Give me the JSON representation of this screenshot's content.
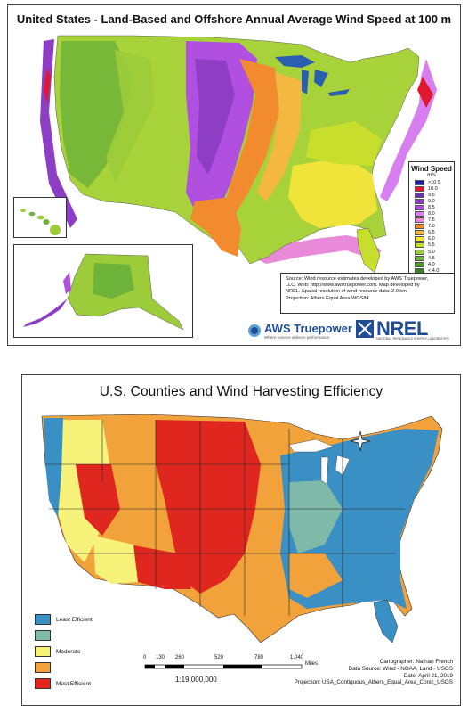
{
  "top_map": {
    "title": "United States - Land-Based and Offshore Annual Average Wind Speed at 100 m",
    "legend": {
      "title": "Wind Speed",
      "unit": "m/s",
      "entries": [
        {
          "label": ">10.5",
          "color": "#1a1aa6"
        },
        {
          "label": "10.0",
          "color": "#e0182d"
        },
        {
          "label": "9.5",
          "color": "#6f2fa8"
        },
        {
          "label": "9.0",
          "color": "#8e3ec4"
        },
        {
          "label": "8.5",
          "color": "#b04fe0"
        },
        {
          "label": "8.0",
          "color": "#d77ff0"
        },
        {
          "label": "7.5",
          "color": "#e98ad8"
        },
        {
          "label": "7.0",
          "color": "#f28a2e"
        },
        {
          "label": "6.5",
          "color": "#f4b840"
        },
        {
          "label": "6.0",
          "color": "#f7e43a"
        },
        {
          "label": "5.5",
          "color": "#c8de2c"
        },
        {
          "label": "5.0",
          "color": "#9ccc3a"
        },
        {
          "label": "4.5",
          "color": "#6eb43a"
        },
        {
          "label": "4.0",
          "color": "#4e9a30"
        },
        {
          "label": "< 4.0",
          "color": "#3c7d28"
        }
      ]
    },
    "source_lines": [
      "Source: Wind resource estimates developed by AWS Truepower,",
      "LLC. Web: http://www.awstruepower.com. Map developed by",
      "NREL. Spatial resolution of wind resource data: 2.0 km.",
      "Projection: Albers Equal Area WGS84."
    ],
    "aws_logo": {
      "name": "AWS Truepower",
      "tagline": "Where science delivers performance."
    },
    "nrel_logo": {
      "name": "NREL",
      "subtitle": "NATIONAL RENEWABLE ENERGY LABORATORY"
    }
  },
  "bottom_map": {
    "title": "U.S. Counties and Wind Harvesting Efficiency",
    "legend": [
      {
        "label": "Least Efficient",
        "color": "#3a8fc4"
      },
      {
        "label": "",
        "color": "#7fb9a8"
      },
      {
        "label": "Moderate",
        "color": "#f7f27a"
      },
      {
        "label": "",
        "color": "#f2a23a"
      },
      {
        "label": "Most Efficient",
        "color": "#e0271f"
      }
    ],
    "scale": {
      "ticks": [
        "0",
        "130",
        "260",
        "520",
        "780",
        "1,040"
      ],
      "unit": "Miles",
      "ratio": "1:19,000,000"
    },
    "credits": [
      "Cartographer: Nathan French",
      "Data Source: Wind - NOAA, Land - USGS",
      "Date: April 21, 2019",
      "Projection: USA_Contiguous_Albers_Equal_Area_Conic_USGS"
    ]
  }
}
